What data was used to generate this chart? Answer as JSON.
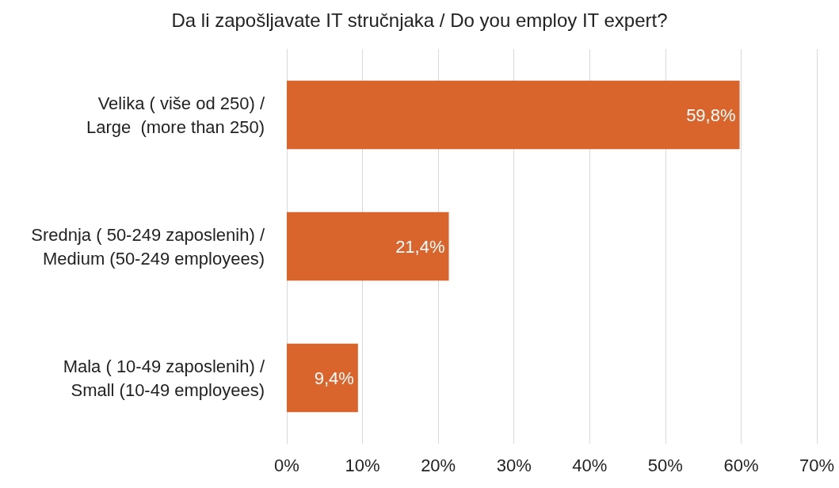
{
  "chart_data": {
    "type": "bar",
    "orientation": "horizontal",
    "title": "Da li zapošljavate IT stručnjaka / Do you employ IT expert?",
    "categories": [
      "Velika ( više od 250) /\nLarge  (more than 250)",
      "Srednja ( 50-249 zaposlenih) /\nMedium (50-249 employees)",
      "Mala ( 10-49 zaposlenih) /\nSmall (10-49 employees)"
    ],
    "values": [
      59.8,
      21.4,
      9.4
    ],
    "value_labels": [
      "59,8%",
      "21,4%",
      "9,4%"
    ],
    "color": "#d9652d",
    "xlim": [
      0,
      70
    ],
    "xticks": [
      {
        "value": 0,
        "label": "0%"
      },
      {
        "value": 10,
        "label": "10%"
      },
      {
        "value": 20,
        "label": "20%"
      },
      {
        "value": 30,
        "label": "30%"
      },
      {
        "value": 40,
        "label": "40%"
      },
      {
        "value": 50,
        "label": "50%"
      },
      {
        "value": 60,
        "label": "60%"
      },
      {
        "value": 70,
        "label": "70%"
      }
    ],
    "grid": "x"
  }
}
